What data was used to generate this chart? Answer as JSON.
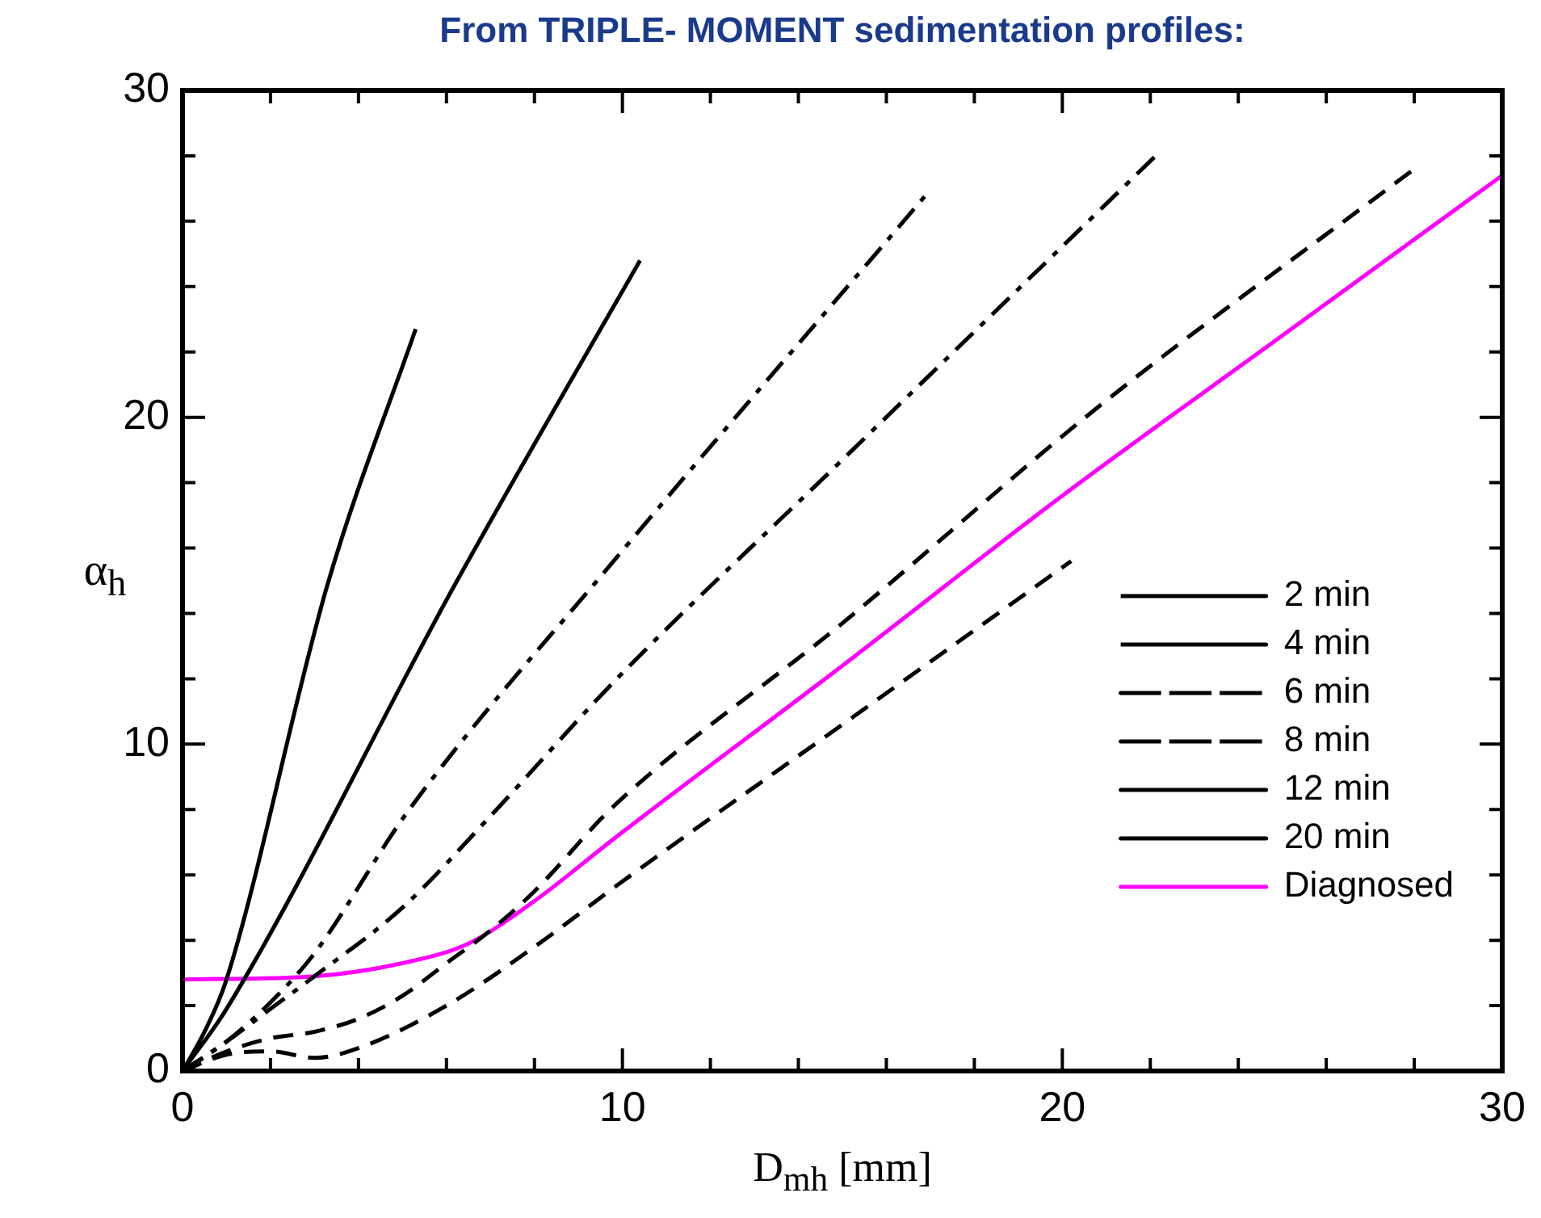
{
  "chart_data": {
    "type": "line",
    "title": "From TRIPLE- MOMENT sedimentation profiles:",
    "xlabel": "D$_{mh}$ [mm]",
    "ylabel": "α$_{h}$",
    "xlim": [
      0,
      30
    ],
    "ylim": [
      0,
      30
    ],
    "xticks": [
      0,
      {
        "value": 2,
        "label": null
      },
      {
        "value": 4,
        "label": null
      },
      {
        "value": 6,
        "label": null
      },
      {
        "value": 8,
        "label": null
      },
      10,
      {
        "value": 12,
        "label": null
      },
      {
        "value": 14,
        "label": null
      },
      {
        "value": 16,
        "label": null
      },
      {
        "value": 18,
        "label": null
      },
      20,
      {
        "value": 22,
        "label": null
      },
      {
        "value": 24,
        "label": null
      },
      {
        "value": 26,
        "label": null
      },
      {
        "value": 28,
        "label": null
      },
      30
    ],
    "yticks": [
      0,
      {
        "value": 2,
        "label": null
      },
      {
        "value": 4,
        "label": null
      },
      {
        "value": 6,
        "label": null
      },
      {
        "value": 8,
        "label": null
      },
      10,
      {
        "value": 12,
        "label": null
      },
      {
        "value": 14,
        "label": null
      },
      {
        "value": 16,
        "label": null
      },
      {
        "value": 18,
        "label": null
      },
      20,
      {
        "value": 22,
        "label": null
      },
      {
        "value": 24,
        "label": null
      },
      {
        "value": 26,
        "label": null
      },
      {
        "value": 28,
        "label": null
      },
      30
    ],
    "grid": false,
    "legend": "bottom right",
    "marker": "none",
    "series": [
      {
        "name": "2 min",
        "color": "#000000",
        "line_style": "dashed",
        "x": [
          0,
          1,
          2,
          3,
          4,
          6,
          8,
          10,
          15,
          20.2
        ],
        "values": [
          0,
          0.5,
          0.6,
          0.4,
          0.7,
          2.0,
          3.8,
          5.8,
          10.6,
          15.6
        ]
      },
      {
        "name": "4 min",
        "color": "#000000",
        "line_style": "dashed",
        "x": [
          0,
          1,
          2,
          3,
          4,
          5,
          6,
          7,
          8,
          9.8,
          15,
          20.8,
          28.1
        ],
        "values": [
          0,
          0.6,
          1.0,
          1.2,
          1.6,
          2.3,
          3.3,
          4.3,
          5.5,
          8.1,
          13.7,
          20.3,
          27.7
        ]
      },
      {
        "name": "6 min",
        "color": "#000000",
        "line_style": "dashdot",
        "x": [
          0,
          1,
          2,
          3,
          5,
          7,
          9.8,
          15,
          22.2
        ],
        "values": [
          0,
          0.9,
          1.9,
          2.9,
          5.0,
          7.8,
          11.9,
          18.7,
          28.1
        ]
      },
      {
        "name": "8 min",
        "color": "#000000",
        "line_style": "dashdot",
        "x": [
          0,
          1,
          2,
          3,
          5.1,
          9.8,
          16.9
        ],
        "values": [
          0,
          0.9,
          2.1,
          3.6,
          7.9,
          15.6,
          26.8
        ]
      },
      {
        "name": "12 min",
        "color": "#000000",
        "line_style": "solid",
        "x": [
          0,
          1,
          6.2,
          10.4
        ],
        "values": [
          0,
          1.9,
          14.9,
          24.8
        ]
      },
      {
        "name": "20 min",
        "color": "#000000",
        "line_style": "solid",
        "x": [
          0,
          0.5,
          1,
          3.3,
          5.3
        ],
        "values": [
          0,
          1.2,
          2.8,
          14.9,
          22.7
        ]
      },
      {
        "name": "Diagnosed",
        "color": "#ff00ff",
        "line_style": "solid",
        "x": [
          0,
          3,
          5,
          6.5,
          8,
          9.8,
          15,
          20,
          25,
          30
        ],
        "values": [
          2.8,
          2.9,
          3.3,
          3.9,
          5.2,
          7.1,
          12.4,
          17.6,
          22.5,
          27.4
        ]
      }
    ]
  }
}
